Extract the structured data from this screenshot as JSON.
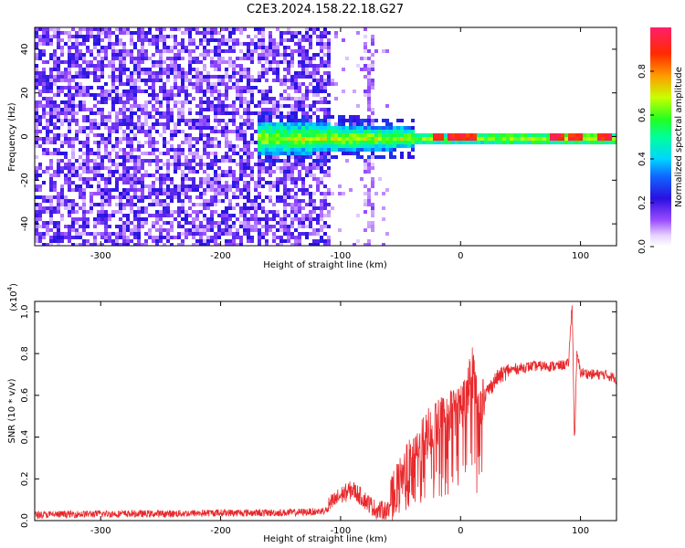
{
  "title": "C2E3.2024.158.22.18.G27",
  "colors": {
    "snr_line": "#e8282b",
    "axis": "#000000",
    "background": "#ffffff",
    "colormap": [
      "#f2e6ff",
      "#c79bff",
      "#7a1cff",
      "#2a0fe0",
      "#1066ff",
      "#00d5ff",
      "#00ff9a",
      "#22ff22",
      "#c8ff00",
      "#ff9a00",
      "#ff2a00",
      "#ff1f6b"
    ]
  },
  "chart_data": [
    {
      "type": "heatmap",
      "title": "C2E3.2024.158.22.18.G27",
      "xlabel": "Height of straight line (km)",
      "ylabel": "Frequency (Hz)",
      "xlim": [
        -355,
        130
      ],
      "ylim": [
        -50,
        50
      ],
      "x_ticks": [
        -300,
        -200,
        -100,
        0,
        100
      ],
      "y_ticks": [
        -40,
        -20,
        0,
        20,
        40
      ],
      "colorbar": {
        "label": "Normalized spectral amplitude",
        "range": [
          0,
          1
        ],
        "ticks": [
          "0.0",
          "0.2",
          "0.4",
          "0.6",
          "0.8"
        ]
      },
      "features": {
        "noise_region_km": [
          -355,
          -110
        ],
        "noise_amplitude": "0.15-0.25",
        "signal_track_start_km": -170,
        "signal_frequency_hz": 0,
        "signal_peak_amplitude": 1.0,
        "strong_peaks_km": [
          -20,
          -5,
          5,
          80,
          95,
          120
        ]
      }
    },
    {
      "type": "line",
      "xlabel": "Height of straight line (km)",
      "ylabel": "SNR (10 * v/v)",
      "y_scale_label": "(x10",
      "y_scale_exp": "4",
      "y_scale_close": ")",
      "xlim": [
        -355,
        130
      ],
      "ylim": [
        0,
        1.05
      ],
      "x_ticks": [
        -300,
        -200,
        -100,
        0,
        100
      ],
      "y_ticks": [
        "0.0",
        "0.2",
        "0.4",
        "0.6",
        "0.8",
        "1.0"
      ],
      "series": [
        {
          "x": [
            -355,
            -300,
            -250,
            -200,
            -150,
            -120,
            -110,
            -100,
            -90,
            -80,
            -70,
            -60,
            -50,
            -45,
            -40,
            -35,
            -30,
            -20,
            -10,
            0,
            5,
            10,
            15,
            20,
            30,
            40,
            50,
            60,
            70,
            80,
            90,
            93,
            95,
            97,
            100,
            110,
            120,
            130
          ],
          "values": [
            0.02,
            0.03,
            0.03,
            0.04,
            0.04,
            0.05,
            0.07,
            0.12,
            0.15,
            0.1,
            0.05,
            0.05,
            0.2,
            0.25,
            0.3,
            0.35,
            0.4,
            0.45,
            0.5,
            0.55,
            0.6,
            0.72,
            0.55,
            0.6,
            0.68,
            0.72,
            0.73,
            0.74,
            0.74,
            0.74,
            0.75,
            1.05,
            0.37,
            0.8,
            0.71,
            0.7,
            0.7,
            0.68
          ]
        }
      ]
    }
  ]
}
